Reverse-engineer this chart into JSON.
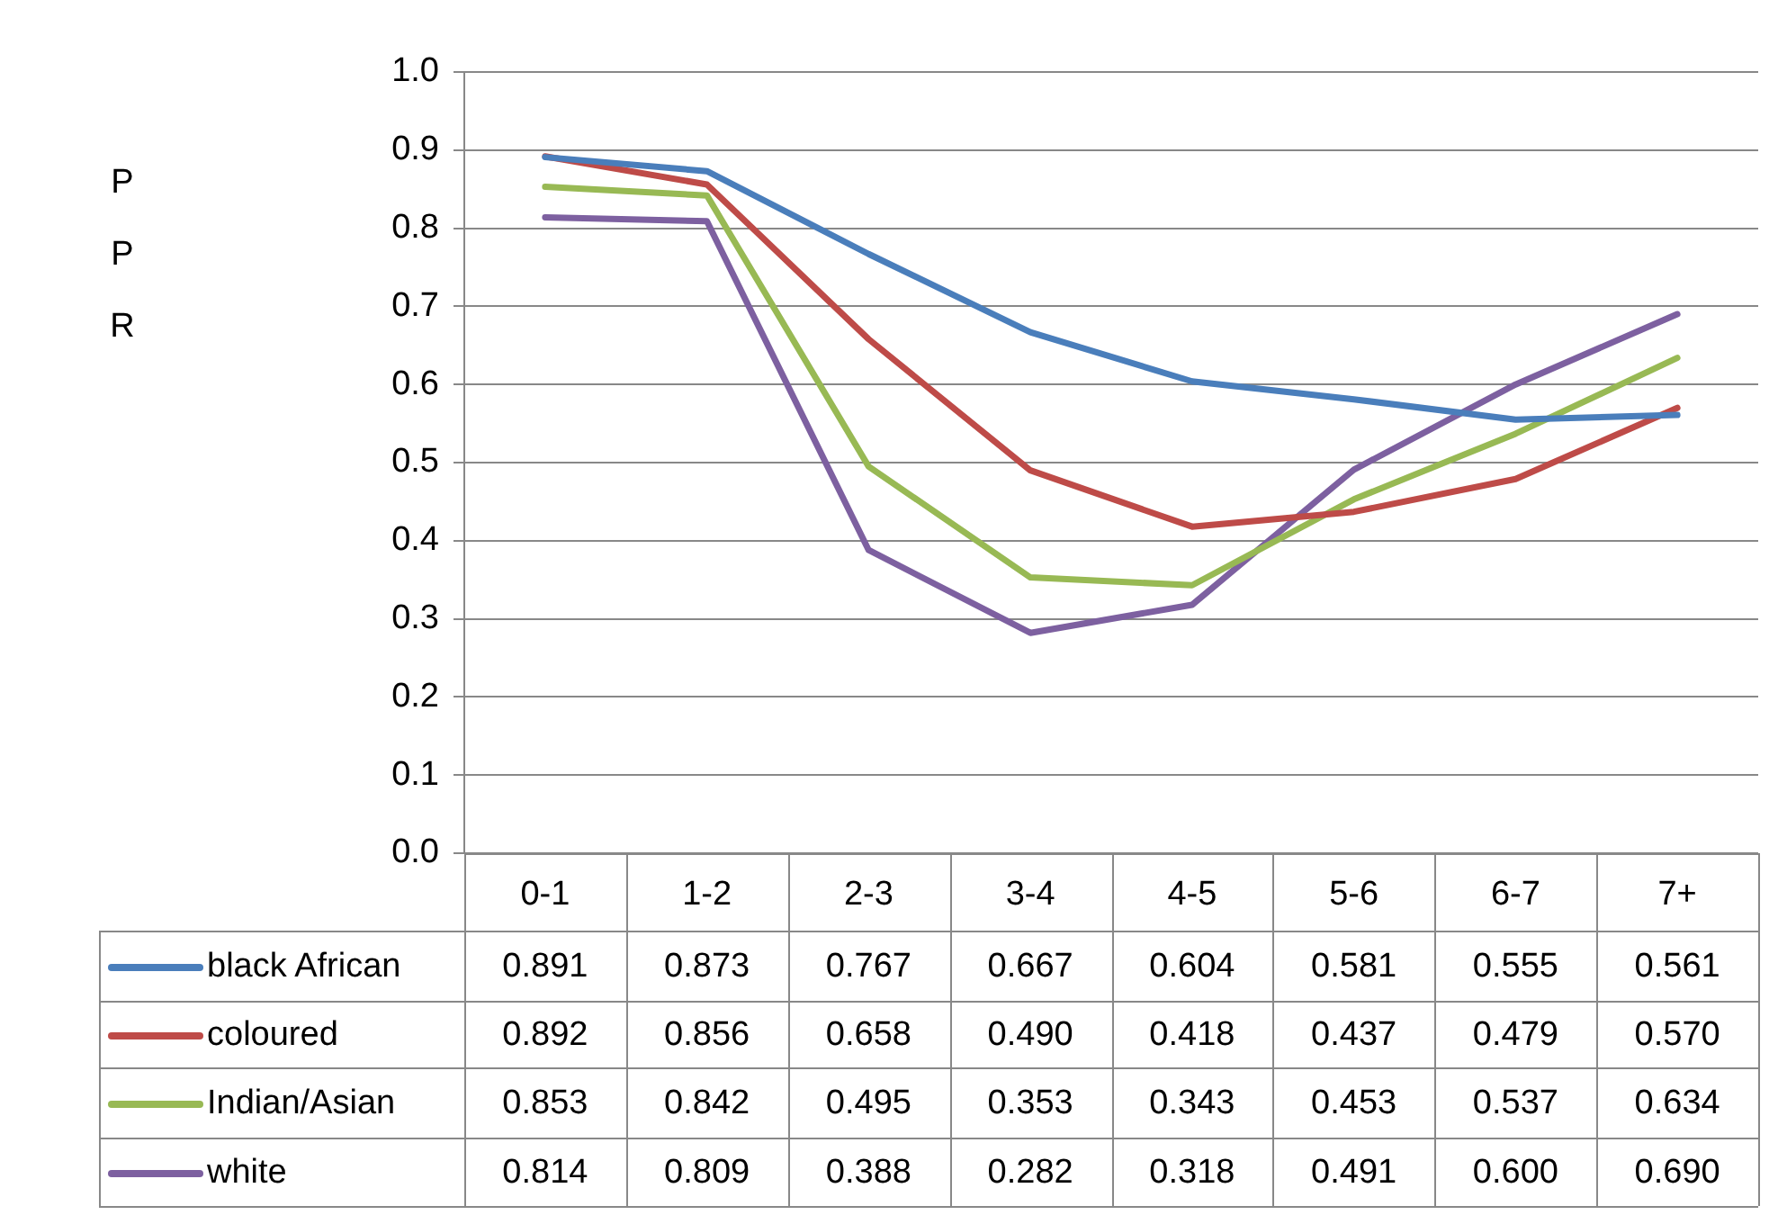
{
  "chart_data": {
    "type": "line",
    "annotations": [
      "PPR"
    ],
    "categories": [
      "0-1",
      "1-2",
      "2-3",
      "3-4",
      "4-5",
      "5-6",
      "6-7",
      "7+"
    ],
    "series": [
      {
        "name": "black African",
        "color": "#4a7ebb",
        "values": [
          0.891,
          0.873,
          0.767,
          0.667,
          0.604,
          0.581,
          0.555,
          0.561
        ],
        "value_labels": [
          "0.891",
          "0.873",
          "0.767",
          "0.667",
          "0.604",
          "0.581",
          "0.555",
          "0.561"
        ]
      },
      {
        "name": "coloured",
        "color": "#be4b48",
        "values": [
          0.892,
          0.856,
          0.658,
          0.49,
          0.418,
          0.437,
          0.479,
          0.57
        ],
        "value_labels": [
          "0.892",
          "0.856",
          "0.658",
          "0.490",
          "0.418",
          "0.437",
          "0.479",
          "0.570"
        ]
      },
      {
        "name": "Indian/Asian",
        "color": "#98b954",
        "values": [
          0.853,
          0.842,
          0.495,
          0.353,
          0.343,
          0.453,
          0.537,
          0.634
        ],
        "value_labels": [
          "0.853",
          "0.842",
          "0.495",
          "0.353",
          "0.343",
          "0.453",
          "0.537",
          "0.634"
        ]
      },
      {
        "name": "white",
        "color": "#7d60a0",
        "values": [
          0.814,
          0.809,
          0.388,
          0.282,
          0.318,
          0.491,
          0.6,
          0.69
        ],
        "value_labels": [
          "0.814",
          "0.809",
          "0.388",
          "0.282",
          "0.318",
          "0.491",
          "0.600",
          "0.690"
        ]
      }
    ],
    "ylim": [
      0,
      1
    ],
    "yticks": [
      {
        "value": 0,
        "label": "0.0"
      },
      0.1,
      0.2,
      0.3,
      0.4,
      0.5,
      0.6,
      0.7,
      0.8,
      0.9,
      {
        "value": 1,
        "label": "1.0"
      }
    ],
    "grid": "y",
    "legend": "bottom",
    "marker": "none",
    "line_style": "solid"
  }
}
